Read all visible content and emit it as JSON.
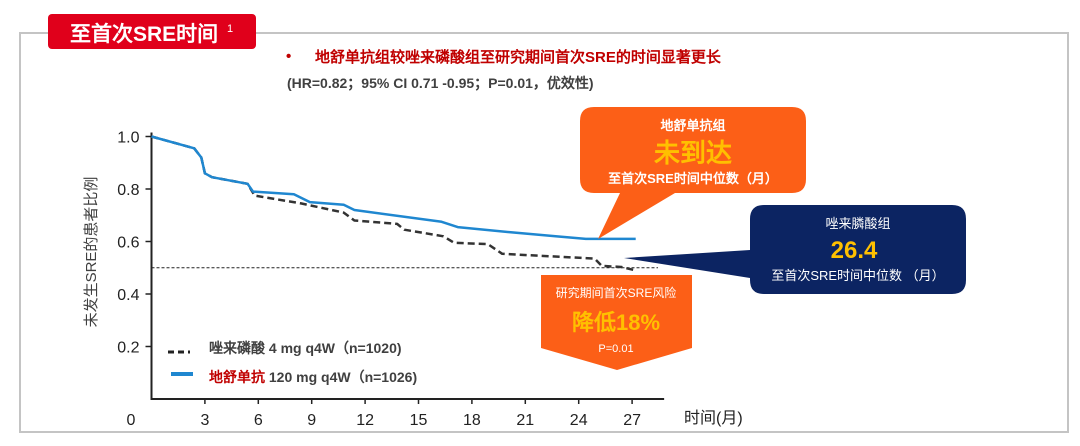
{
  "header": {
    "title": "至首次SRE时间",
    "title_sup": "1",
    "bullet": "•",
    "headline": "地舒单抗组较唑来磷酸组至研究期间首次SRE的时间显著更长",
    "stats": "(HR=0.82；95% CI 0.71 -0.95；P=0.01，优效性)"
  },
  "callouts": {
    "denosumab": {
      "group": "地舒单抗组",
      "value": "未到达",
      "caption": "至首次SRE时间中位数（月）"
    },
    "zoledronic": {
      "group": "唑来膦酸组",
      "value": "26.4",
      "caption": "至首次SRE时间中位数 （月）"
    },
    "risk": {
      "caption": "研究期间首次SRE风险",
      "value": "降低18%",
      "p": "P=0.01"
    }
  },
  "colors": {
    "brand_red": "#e0001b",
    "orange": "#fc5f17",
    "navy": "#0c2462",
    "gold": "#ffc000",
    "blue_series": "#1f87d0",
    "black_series": "#333333"
  },
  "chart_data": {
    "type": "line",
    "title": "至首次SRE时间",
    "xlabel": "时间(月)",
    "ylabel": "未发生SRE的患者比例",
    "xlim": [
      0,
      27
    ],
    "ylim": [
      0,
      1.0
    ],
    "xticks": [
      "0",
      "3",
      "6",
      "9",
      "12",
      "15",
      "18",
      "21",
      "24",
      "27"
    ],
    "yticks": [
      "1.0",
      "0.8",
      "0.6",
      "0.4",
      "0.2"
    ],
    "reference_line": {
      "y": 0.5,
      "style": "dotted"
    },
    "series": [
      {
        "name": "唑来磷酸",
        "legend_rest": "4 mg q4W（n=1020)",
        "style": "dashed",
        "x": [
          0,
          2.4,
          2.8,
          3.0,
          3.4,
          5.4,
          5.8,
          8.4,
          10.8,
          11.4,
          13.8,
          14.2,
          16.4,
          17.0,
          18.9,
          19.7,
          24.9,
          25.3,
          26.4,
          27.2
        ],
        "y": [
          1.0,
          0.955,
          0.92,
          0.86,
          0.845,
          0.82,
          0.775,
          0.745,
          0.71,
          0.68,
          0.667,
          0.645,
          0.62,
          0.595,
          0.59,
          0.553,
          0.535,
          0.507,
          0.503,
          0.49
        ]
      },
      {
        "name": "地舒单抗",
        "legend_rest": "120 mg q4W（n=1026)",
        "style": "solid",
        "x": [
          0,
          2.4,
          2.8,
          3.0,
          3.4,
          5.4,
          5.7,
          8.0,
          8.9,
          10.8,
          11.4,
          16.3,
          17.2,
          20.1,
          22.7,
          24.4,
          27.2
        ],
        "y": [
          1.0,
          0.955,
          0.92,
          0.86,
          0.845,
          0.82,
          0.79,
          0.78,
          0.75,
          0.74,
          0.72,
          0.675,
          0.655,
          0.636,
          0.62,
          0.61,
          0.61
        ]
      }
    ]
  }
}
